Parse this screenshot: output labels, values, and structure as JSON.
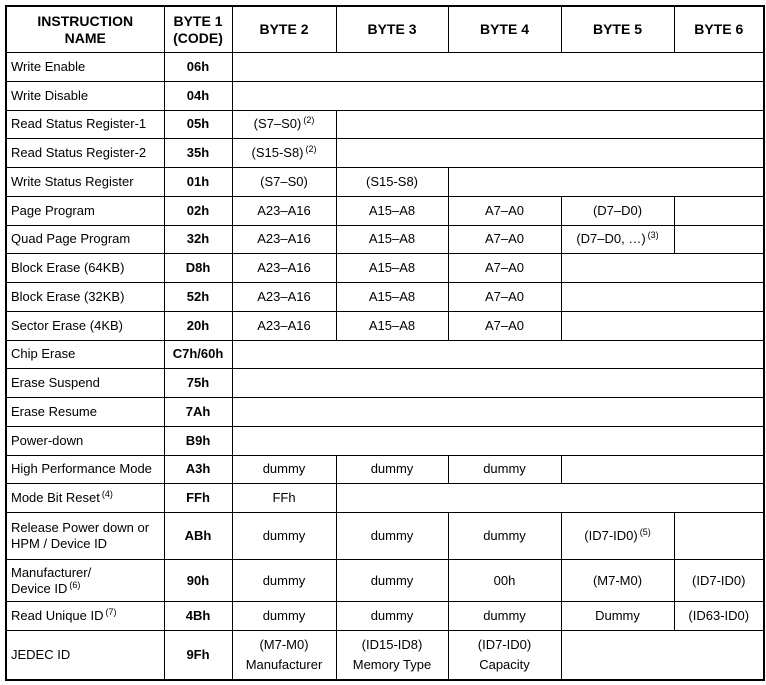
{
  "table": {
    "header": [
      {
        "lines": [
          "INSTRUCTION",
          "NAME"
        ]
      },
      {
        "lines": [
          "BYTE 1",
          "(CODE)"
        ]
      },
      "BYTE 2",
      "BYTE 3",
      "BYTE 4",
      "BYTE 5",
      "BYTE 6"
    ],
    "rows": [
      {
        "name": "Write Enable",
        "code": "06h",
        "bytes": []
      },
      {
        "name": "Write Disable",
        "code": "04h",
        "bytes": []
      },
      {
        "name": "Read Status Register-1",
        "code": "05h",
        "bytes": [
          {
            "text": "(S7–S0)",
            "note": "(2)"
          }
        ]
      },
      {
        "name": "Read Status Register-2",
        "code": "35h",
        "bytes": [
          {
            "text": "(S15-S8)",
            "note": "(2)"
          }
        ]
      },
      {
        "name": "Write Status Register",
        "code": "01h",
        "bytes": [
          "(S7–S0)",
          "(S15-S8)"
        ]
      },
      {
        "name": "Page Program",
        "code": "02h",
        "bytes": [
          "A23–A16",
          "A15–A8",
          "A7–A0",
          "(D7–D0)"
        ]
      },
      {
        "name": "Quad Page Program",
        "code": "32h",
        "bytes": [
          "A23–A16",
          "A15–A8",
          "A7–A0",
          {
            "text": "(D7–D0, …)",
            "note": "(3)"
          }
        ]
      },
      {
        "name": "Block Erase (64KB)",
        "code": "D8h",
        "bytes": [
          "A23–A16",
          "A15–A8",
          "A7–A0"
        ]
      },
      {
        "name": "Block Erase (32KB)",
        "code": "52h",
        "bytes": [
          "A23–A16",
          "A15–A8",
          "A7–A0"
        ]
      },
      {
        "name": "Sector Erase (4KB)",
        "code": "20h",
        "bytes": [
          "A23–A16",
          "A15–A8",
          "A7–A0"
        ]
      },
      {
        "name": "Chip Erase",
        "code": "C7h/60h",
        "bytes": []
      },
      {
        "name": "Erase Suspend",
        "code": "75h",
        "bytes": []
      },
      {
        "name": "Erase Resume",
        "code": "7Ah",
        "bytes": []
      },
      {
        "name": "Power-down",
        "code": "B9h",
        "bytes": []
      },
      {
        "name": "High Performance Mode",
        "code": "A3h",
        "bytes": [
          "dummy",
          "dummy",
          "dummy"
        ]
      },
      {
        "name": {
          "text": "Mode Bit Reset",
          "note": "(4)"
        },
        "code": "FFh",
        "bytes": [
          "FFh"
        ]
      },
      {
        "name": {
          "lines": [
            "Release Power down or",
            "HPM / Device ID"
          ]
        },
        "code": "ABh",
        "bytes": [
          "dummy",
          "dummy",
          "dummy",
          {
            "text": "(ID7-ID0)",
            "note": "(5)"
          }
        ]
      },
      {
        "name": {
          "lines": [
            "Manufacturer/",
            "Device ID"
          ],
          "note": "(6)"
        },
        "code": "90h",
        "bytes": [
          "dummy",
          "dummy",
          "00h",
          "(M7-M0)",
          "(ID7-ID0)"
        ]
      },
      {
        "name": {
          "text": "Read Unique ID",
          "note": "(7)"
        },
        "code": "4Bh",
        "bytes": [
          "dummy",
          "dummy",
          "dummy",
          "Dummy",
          "(ID63-ID0)"
        ]
      },
      {
        "name": "JEDEC ID",
        "code": "9Fh",
        "bytes": [
          {
            "lines": [
              "(M7-M0)",
              "Manufacturer"
            ]
          },
          {
            "lines": [
              "(ID15-ID8)",
              "Memory Type"
            ]
          },
          {
            "lines": [
              "(ID7-ID0)",
              "Capacity"
            ]
          }
        ]
      }
    ]
  }
}
